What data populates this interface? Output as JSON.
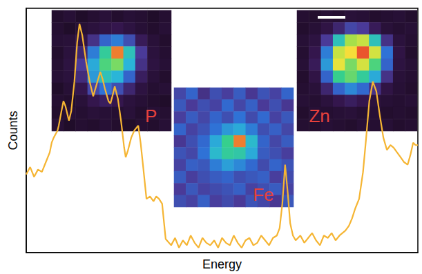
{
  "chart_data": {
    "type": "line",
    "x_label": "Energy",
    "y_label": "Counts",
    "xlim": [
      0,
      100
    ],
    "ylim": [
      0,
      100
    ],
    "tick_labels": false,
    "grid": false,
    "color": "#f5b533",
    "x": [
      0,
      1,
      2,
      3,
      4,
      5,
      6,
      6.5,
      7,
      8,
      8.3,
      9,
      9.5,
      10,
      10.9,
      11.5,
      12.3,
      13,
      13.6,
      14.3,
      15.3,
      16.2,
      17.1,
      18,
      18.9,
      19.5,
      20.1,
      21,
      21.5,
      22,
      22.6,
      23.4,
      24.2,
      25,
      25.4,
      26,
      26.8,
      27.6,
      28.6,
      29.2,
      29.8,
      30.7,
      31.6,
      32.5,
      33.2,
      33.9,
      34.7,
      35.2,
      35.6,
      37,
      38,
      39,
      40,
      41,
      42,
      43,
      44,
      45,
      46,
      47,
      48,
      49,
      50,
      51,
      52,
      53,
      54,
      55,
      56,
      57,
      58,
      59,
      60,
      61,
      62,
      63,
      64,
      64.7,
      65.4,
      66.1,
      66.8,
      67.4,
      68.1,
      68.8,
      70,
      71,
      72,
      73,
      74,
      75,
      76,
      77,
      78,
      79,
      80,
      81.5,
      82.4,
      83.2,
      84,
      85,
      86,
      86.8,
      87.6,
      88.5,
      89.4,
      90.3,
      91.2,
      92.1,
      93,
      93.8,
      94.7,
      95.6,
      96.5,
      97.4,
      98.1,
      98.8,
      99.4,
      100
    ],
    "values": [
      32,
      35,
      31,
      34,
      33,
      37,
      41,
      45,
      47,
      50,
      52,
      58,
      62,
      60,
      54,
      58,
      70,
      86,
      93.6,
      89,
      78,
      70,
      64,
      69,
      74,
      71,
      67,
      62,
      61,
      64,
      68,
      63,
      54,
      43,
      39,
      42,
      47,
      50,
      52,
      45,
      36,
      22,
      23,
      21,
      23,
      22,
      20,
      12,
      5.6,
      3,
      6,
      2,
      5,
      3,
      7,
      4,
      2,
      6,
      4,
      3,
      5,
      2,
      6,
      4,
      3,
      7,
      4,
      2,
      5,
      6,
      3,
      4,
      7,
      5,
      3,
      6,
      7,
      10,
      20,
      36,
      24,
      12,
      7,
      5,
      7,
      4,
      6,
      8,
      5,
      3,
      7,
      6,
      8,
      5,
      7,
      9,
      11,
      14,
      18,
      22,
      33,
      47,
      62,
      70,
      66,
      56,
      47,
      42,
      44,
      43,
      41,
      39,
      37,
      36,
      40,
      45,
      44,
      44
    ],
    "insets": [
      {
        "label": "P",
        "value_range": [
          0,
          100
        ],
        "cells": [
          [
            4,
            6,
            3,
            5,
            7,
            4,
            6,
            5,
            3,
            5
          ],
          [
            5,
            3,
            6,
            8,
            10,
            12,
            9,
            6,
            4,
            6
          ],
          [
            6,
            7,
            10,
            22,
            35,
            40,
            30,
            14,
            7,
            4
          ],
          [
            4,
            8,
            18,
            40,
            60,
            95,
            55,
            25,
            8,
            5
          ],
          [
            5,
            9,
            25,
            48,
            65,
            70,
            50,
            22,
            9,
            6
          ],
          [
            6,
            8,
            20,
            45,
            55,
            50,
            35,
            15,
            7,
            4
          ],
          [
            3,
            6,
            12,
            28,
            38,
            30,
            18,
            9,
            5,
            6
          ],
          [
            5,
            4,
            7,
            12,
            15,
            12,
            8,
            6,
            4,
            3
          ],
          [
            4,
            6,
            5,
            7,
            6,
            5,
            7,
            4,
            6,
            5
          ],
          [
            6,
            3,
            5,
            4,
            6,
            4,
            3,
            5,
            4,
            6
          ]
        ]
      },
      {
        "label": "Fe",
        "value_range": [
          0,
          100
        ],
        "cells": [
          [
            28,
            35,
            22,
            30,
            26,
            33,
            24,
            31,
            27,
            35
          ],
          [
            32,
            25,
            30,
            27,
            36,
            28,
            34,
            25,
            30,
            24
          ],
          [
            26,
            33,
            28,
            35,
            30,
            38,
            29,
            36,
            27,
            32
          ],
          [
            35,
            27,
            31,
            38,
            45,
            48,
            40,
            30,
            34,
            28
          ],
          [
            24,
            30,
            36,
            48,
            62,
            95,
            52,
            35,
            28,
            33
          ],
          [
            31,
            28,
            38,
            52,
            60,
            58,
            48,
            33,
            30,
            26
          ],
          [
            27,
            34,
            32,
            40,
            46,
            42,
            36,
            29,
            35,
            31
          ],
          [
            33,
            26,
            30,
            33,
            35,
            30,
            32,
            34,
            26,
            29
          ],
          [
            25,
            32,
            27,
            29,
            31,
            34,
            27,
            30,
            33,
            27
          ],
          [
            30,
            27,
            34,
            26,
            29,
            25,
            31,
            28,
            24,
            32
          ]
        ]
      },
      {
        "label": "Zn",
        "value_range": [
          0,
          100
        ],
        "cells": [
          [
            5,
            4,
            6,
            5,
            7,
            6,
            4,
            5,
            6,
            4
          ],
          [
            4,
            6,
            10,
            18,
            28,
            25,
            14,
            7,
            5,
            6
          ],
          [
            6,
            9,
            25,
            55,
            75,
            80,
            55,
            22,
            8,
            5
          ],
          [
            5,
            12,
            40,
            80,
            88,
            98,
            82,
            38,
            10,
            4
          ],
          [
            6,
            14,
            45,
            85,
            70,
            82,
            65,
            35,
            9,
            6
          ],
          [
            4,
            10,
            35,
            62,
            68,
            60,
            48,
            22,
            7,
            5
          ],
          [
            5,
            7,
            18,
            35,
            42,
            36,
            22,
            10,
            6,
            4
          ],
          [
            6,
            5,
            8,
            12,
            15,
            12,
            8,
            6,
            5,
            6
          ],
          [
            4,
            6,
            5,
            6,
            7,
            5,
            6,
            4,
            5,
            4
          ],
          [
            5,
            4,
            6,
            5,
            4,
            6,
            5,
            6,
            4,
            5
          ]
        ]
      }
    ]
  }
}
